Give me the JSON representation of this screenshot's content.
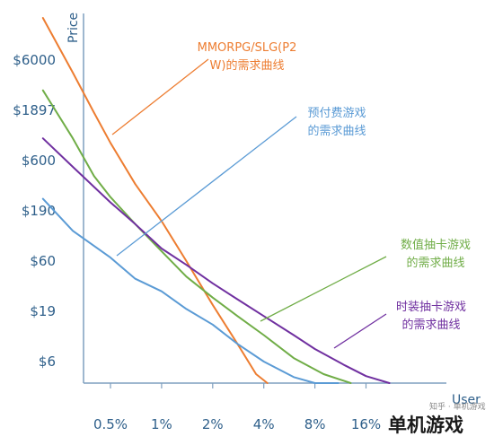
{
  "chart_data": {
    "type": "line",
    "xlabel": "User",
    "ylabel": "Price",
    "x_ticks": [
      "0.5%",
      "1%",
      "2%",
      "4%",
      "8%",
      "16%"
    ],
    "y_ticks": [
      "$6000",
      "$1897",
      "$600",
      "$190",
      "$60",
      "$19",
      "$6"
    ],
    "grid": false,
    "series": [
      {
        "name": "MMORPG/SLG(P2 W)的需求曲线",
        "color": "#ed7d31",
        "points": [
          [
            0.2,
            18000
          ],
          [
            0.3,
            4500
          ],
          [
            0.4,
            1800
          ],
          [
            0.5,
            900
          ],
          [
            0.7,
            350
          ],
          [
            1,
            150
          ],
          [
            1.4,
            60
          ],
          [
            2,
            22
          ],
          [
            2.8,
            9
          ],
          [
            3.6,
            4.5
          ],
          [
            4.2,
            3.2
          ]
        ]
      },
      {
        "name": "预付费游戏的需求曲线",
        "color": "#5b9bd5",
        "points": [
          [
            0.2,
            250
          ],
          [
            0.3,
            120
          ],
          [
            0.4,
            85
          ],
          [
            0.5,
            65
          ],
          [
            0.7,
            40
          ],
          [
            1,
            30
          ],
          [
            1.4,
            20
          ],
          [
            2,
            14
          ],
          [
            2.8,
            9
          ],
          [
            4,
            6
          ],
          [
            6,
            4.2
          ],
          [
            8,
            3.5
          ],
          [
            11,
            3.2
          ]
        ]
      },
      {
        "name": "数值抽卡游戏的需求曲线",
        "color": "#70ad47",
        "points": [
          [
            0.2,
            3000
          ],
          [
            0.3,
            1000
          ],
          [
            0.4,
            420
          ],
          [
            0.5,
            260
          ],
          [
            0.7,
            140
          ],
          [
            1,
            75
          ],
          [
            1.4,
            42
          ],
          [
            2,
            26
          ],
          [
            2.8,
            17
          ],
          [
            4,
            11
          ],
          [
            6,
            6.5
          ],
          [
            9,
            4.5
          ],
          [
            13,
            3.2
          ]
        ]
      },
      {
        "name": "时装抽卡游戏的需求曲线",
        "color": "#7030a0",
        "points": [
          [
            0.2,
            1000
          ],
          [
            0.3,
            520
          ],
          [
            0.5,
            230
          ],
          [
            0.7,
            140
          ],
          [
            1,
            80
          ],
          [
            1.4,
            55
          ],
          [
            2,
            36
          ],
          [
            2.8,
            25
          ],
          [
            4,
            17
          ],
          [
            6,
            11
          ],
          [
            8,
            8
          ],
          [
            12,
            5.5
          ],
          [
            16,
            4.3
          ],
          [
            22,
            3.3
          ]
        ]
      }
    ]
  },
  "annotations": [
    {
      "lines": [
        "MMORPG/SLG(P2",
        "W)的需求曲线"
      ],
      "color": "#ed7d31"
    },
    {
      "lines": [
        "预付费游戏",
        "的需求曲线"
      ],
      "color": "#5b9bd5"
    },
    {
      "lines": [
        "数值抽卡游戏",
        "的需求曲线"
      ],
      "color": "#70ad47"
    },
    {
      "lines": [
        "时装抽卡游戏",
        "的需求曲线"
      ],
      "color": "#7030a0"
    }
  ],
  "watermark": {
    "small": "知乎 · 单机游戏",
    "big": "单机游戏"
  },
  "colors": {
    "axis": "#7f9fbf",
    "tick_text": "#2e5f8a"
  }
}
